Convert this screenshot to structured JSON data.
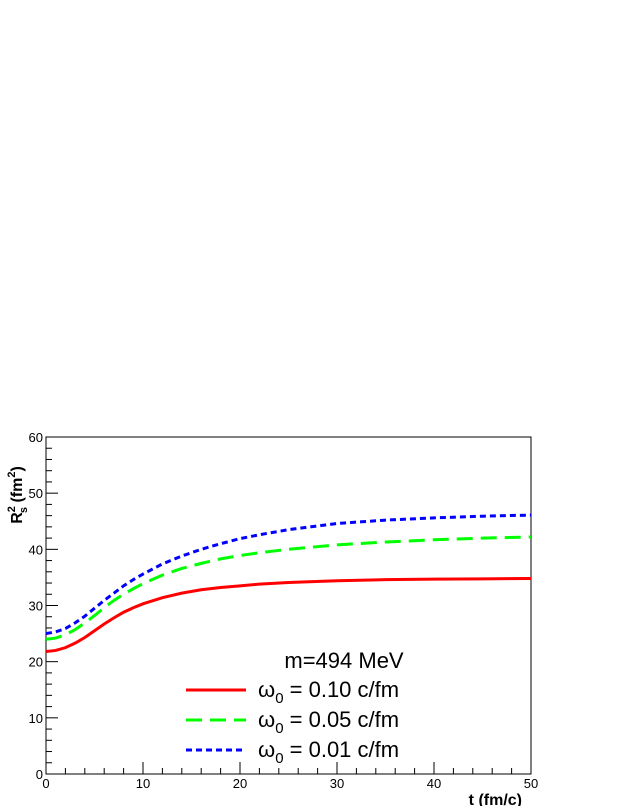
{
  "chart_data": {
    "type": "line",
    "title": "",
    "xlabel": "t (fm/c)",
    "ylabel": {
      "main": "R",
      "sup": "2",
      "sub": "s",
      "unit_prefix": " (fm",
      "unit_sup": "2",
      "unit_suffix": ")"
    },
    "xlim": [
      0,
      50
    ],
    "ylim": [
      0,
      60
    ],
    "xticks": [
      0,
      10,
      20,
      30,
      40,
      50
    ],
    "yticks": [
      0,
      10,
      20,
      30,
      40,
      50,
      60
    ],
    "grid": false,
    "legend_header": "m=494 MeV",
    "legend_position": "bottom-right",
    "x": [
      0,
      1,
      2,
      3,
      4,
      5,
      6,
      7,
      8,
      9,
      10,
      12,
      14,
      16,
      18,
      20,
      22,
      25,
      30,
      35,
      40,
      45,
      50
    ],
    "series": [
      {
        "name": {
          "main": "ω",
          "sub": "0",
          "rest": " = 0.10 c/fm"
        },
        "color": "#ff0000",
        "dash": "solid",
        "values": [
          21.8,
          22.0,
          22.5,
          23.3,
          24.3,
          25.5,
          26.7,
          27.8,
          28.8,
          29.6,
          30.3,
          31.4,
          32.2,
          32.8,
          33.2,
          33.5,
          33.8,
          34.1,
          34.4,
          34.6,
          34.7,
          34.75,
          34.8
        ]
      },
      {
        "name": {
          "main": "ω",
          "sub": "0",
          "rest": " = 0.05 c/fm"
        },
        "color": "#00ff00",
        "dash": "long-dash",
        "values": [
          24.0,
          24.2,
          24.8,
          25.7,
          26.9,
          28.2,
          29.6,
          30.9,
          32.0,
          33.0,
          33.9,
          35.4,
          36.6,
          37.5,
          38.3,
          38.9,
          39.4,
          40.0,
          40.8,
          41.3,
          41.7,
          42.0,
          42.2
        ]
      },
      {
        "name": {
          "main": "ω",
          "sub": "0",
          "rest": " = 0.01 c/fm"
        },
        "color": "#0000ff",
        "dash": "short-dash",
        "values": [
          25.0,
          25.3,
          25.9,
          26.9,
          28.1,
          29.5,
          30.9,
          32.2,
          33.5,
          34.6,
          35.6,
          37.4,
          38.8,
          40.0,
          41.0,
          41.9,
          42.6,
          43.5,
          44.6,
          45.2,
          45.6,
          45.9,
          46.1
        ]
      }
    ]
  }
}
